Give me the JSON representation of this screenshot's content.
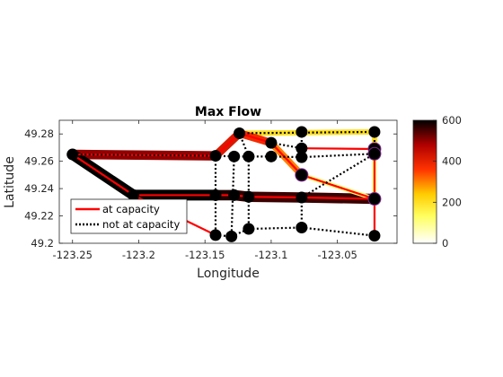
{
  "chart_data": {
    "type": "graph-flow-map",
    "title": "Max Flow",
    "xlabel": "Longitude",
    "ylabel": "Latitude",
    "xlim": [
      -123.26,
      -123.005
    ],
    "ylim": [
      49.2,
      49.29
    ],
    "xticks": [
      -123.25,
      -123.2,
      -123.15,
      -123.1,
      -123.05
    ],
    "xtick_labels": [
      "-123.25",
      "-123.2",
      "-123.15",
      "-123.1",
      "-123.05"
    ],
    "yticks": [
      49.2,
      49.22,
      49.24,
      49.26,
      49.28
    ],
    "ytick_labels": [
      "49.2",
      "49.22",
      "49.24",
      "49.26",
      "49.28"
    ],
    "legend": {
      "position": "bottom-left",
      "entries": [
        {
          "label": "at capacity",
          "style": "solid",
          "color": "#ff0000"
        },
        {
          "label": "not at capacity",
          "style": "dotted",
          "color": "#000000"
        }
      ]
    },
    "colorbar": {
      "colormap": "hot-reversed",
      "range": [
        0,
        600
      ],
      "ticks": [
        0,
        200,
        400,
        600
      ],
      "tick_labels": [
        "0",
        "200",
        "400",
        "600"
      ]
    },
    "nodes": [
      {
        "id": 1,
        "lon": -123.25,
        "lat": 49.265
      },
      {
        "id": 2,
        "lon": -123.204,
        "lat": 49.2352
      },
      {
        "id": 3,
        "lon": -123.142,
        "lat": 49.264
      },
      {
        "id": 4,
        "lon": -123.142,
        "lat": 49.2352
      },
      {
        "id": 5,
        "lon": -123.142,
        "lat": 49.206
      },
      {
        "id": 6,
        "lon": -123.13,
        "lat": 49.205
      },
      {
        "id": 7,
        "lon": -123.128,
        "lat": 49.2635
      },
      {
        "id": 8,
        "lon": -123.128,
        "lat": 49.2352
      },
      {
        "id": 9,
        "lon": -123.124,
        "lat": 49.2805
      },
      {
        "id": 10,
        "lon": -123.117,
        "lat": 49.2635
      },
      {
        "id": 11,
        "lon": -123.117,
        "lat": 49.234
      },
      {
        "id": 12,
        "lon": -123.117,
        "lat": 49.2105
      },
      {
        "id": 13,
        "lon": -123.1,
        "lat": 49.2735
      },
      {
        "id": 14,
        "lon": -123.1,
        "lat": 49.2635
      },
      {
        "id": 15,
        "lon": -123.077,
        "lat": 49.2815
      },
      {
        "id": 16,
        "lon": -123.077,
        "lat": 49.2695
      },
      {
        "id": 17,
        "lon": -123.077,
        "lat": 49.263
      },
      {
        "id": 18,
        "lon": -123.077,
        "lat": 49.25
      },
      {
        "id": 19,
        "lon": -123.077,
        "lat": 49.2335
      },
      {
        "id": 20,
        "lon": -123.077,
        "lat": 49.2115
      },
      {
        "id": 21,
        "lon": -123.022,
        "lat": 49.2815
      },
      {
        "id": 22,
        "lon": -123.022,
        "lat": 49.269
      },
      {
        "id": 23,
        "lon": -123.022,
        "lat": 49.2655
      },
      {
        "id": 24,
        "lon": -123.022,
        "lat": 49.2325
      },
      {
        "id": 25,
        "lon": -123.022,
        "lat": 49.2055
      }
    ],
    "edges": [
      {
        "from": 1,
        "to": 3,
        "flow": 500,
        "at_capacity": true
      },
      {
        "from": 1,
        "to": 2,
        "flow": 600,
        "at_capacity": true
      },
      {
        "from": 2,
        "to": 4,
        "flow": 600,
        "at_capacity": true
      },
      {
        "from": 4,
        "to": 8,
        "flow": 580,
        "at_capacity": true
      },
      {
        "from": 8,
        "to": 11,
        "flow": 570,
        "at_capacity": true
      },
      {
        "from": 11,
        "to": 19,
        "flow": 560,
        "at_capacity": true
      },
      {
        "from": 19,
        "to": 24,
        "flow": 560,
        "at_capacity": true
      },
      {
        "from": 3,
        "to": 9,
        "flow": 420,
        "at_capacity": true
      },
      {
        "from": 9,
        "to": 21,
        "flow": 200,
        "at_capacity": false
      },
      {
        "from": 9,
        "to": 13,
        "flow": 380,
        "at_capacity": true
      },
      {
        "from": 13,
        "to": 18,
        "flow": 300,
        "at_capacity": true
      },
      {
        "from": 18,
        "to": 24,
        "flow": 120,
        "at_capacity": true
      },
      {
        "from": 21,
        "to": 22,
        "flow": 200,
        "at_capacity": false
      },
      {
        "from": 22,
        "to": 24,
        "flow": 120,
        "at_capacity": true
      },
      {
        "from": 16,
        "to": 22,
        "flow": 0,
        "at_capacity": true
      },
      {
        "from": 2,
        "to": 5,
        "flow": 0,
        "at_capacity": true
      },
      {
        "from": 1,
        "to": 3,
        "flow": 0,
        "at_capacity": false
      },
      {
        "from": 3,
        "to": 4,
        "flow": 0,
        "at_capacity": false
      },
      {
        "from": 3,
        "to": 7,
        "flow": 0,
        "at_capacity": false
      },
      {
        "from": 4,
        "to": 5,
        "flow": 0,
        "at_capacity": false
      },
      {
        "from": 7,
        "to": 6,
        "flow": 0,
        "at_capacity": false
      },
      {
        "from": 7,
        "to": 10,
        "flow": 0,
        "at_capacity": false
      },
      {
        "from": 10,
        "to": 12,
        "flow": 0,
        "at_capacity": false
      },
      {
        "from": 10,
        "to": 9,
        "flow": 0,
        "at_capacity": false
      },
      {
        "from": 10,
        "to": 14,
        "flow": 0,
        "at_capacity": false
      },
      {
        "from": 14,
        "to": 17,
        "flow": 0,
        "at_capacity": false
      },
      {
        "from": 17,
        "to": 23,
        "flow": 0,
        "at_capacity": false
      },
      {
        "from": 15,
        "to": 17,
        "flow": 0,
        "at_capacity": false
      },
      {
        "from": 13,
        "to": 16,
        "flow": 0,
        "at_capacity": false
      },
      {
        "from": 19,
        "to": 20,
        "flow": 0,
        "at_capacity": false
      },
      {
        "from": 5,
        "to": 6,
        "flow": 0,
        "at_capacity": false
      },
      {
        "from": 6,
        "to": 12,
        "flow": 0,
        "at_capacity": false
      },
      {
        "from": 12,
        "to": 20,
        "flow": 0,
        "at_capacity": false
      },
      {
        "from": 20,
        "to": 25,
        "flow": 0,
        "at_capacity": false
      },
      {
        "from": 19,
        "to": 23,
        "flow": 0,
        "at_capacity": false
      },
      {
        "from": 24,
        "to": 25,
        "flow": 0,
        "at_capacity": true
      }
    ],
    "grid": false
  }
}
